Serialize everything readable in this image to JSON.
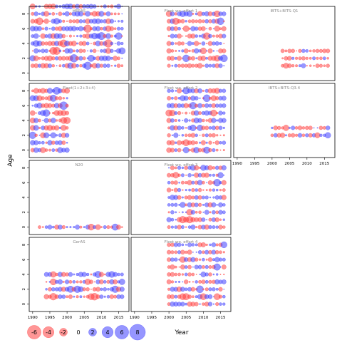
{
  "axes": {
    "ylabel": "Age",
    "xlabel": "Year"
  },
  "x_ticks": [
    1990,
    1995,
    2000,
    2005,
    2010,
    2015
  ],
  "y_ticks": [
    0,
    2,
    4,
    6,
    8
  ],
  "legend": {
    "values": [
      -6,
      -4,
      -2,
      0,
      2,
      4,
      6,
      8
    ]
  },
  "colors": {
    "negative": "#ff4040",
    "positive": "#4040ff",
    "frame": "#000000",
    "title": "#888888"
  },
  "chart_data": [
    {
      "type": "scatter",
      "title": "HERAS",
      "x_range": [
        1989,
        2018
      ],
      "y_range": [
        -1,
        9
      ],
      "years": [
        1990,
        2016
      ],
      "ages": [
        1,
        9
      ],
      "seed": 11,
      "scale": 1.05
    },
    {
      "type": "scatter",
      "title": "Fleet wo. effort 1",
      "x_range": [
        1989,
        2018
      ],
      "y_range": [
        -1,
        9
      ],
      "years": [
        2000,
        2016
      ],
      "ages": [
        1,
        8
      ],
      "seed": 23,
      "scale": 0.95
    },
    {
      "type": "scatter",
      "title": "IBTS+BITS-Q1",
      "x_range": [
        1989,
        2018
      ],
      "y_range": [
        -1,
        9
      ],
      "years": [
        2003,
        2016
      ],
      "ages": [
        1,
        3
      ],
      "seed": 37,
      "scale": 0.85
    },
    {
      "type": "scatter",
      "title": "Fleet(1+2+3+4)",
      "x_range": [
        1989,
        2018
      ],
      "y_range": [
        -1,
        9
      ],
      "years": [
        1990,
        2000
      ],
      "ages": [
        0,
        8
      ],
      "seed": 41,
      "scale": 1.1
    },
    {
      "type": "scatter",
      "title": "Fleet wo. effort 2",
      "x_range": [
        1989,
        2018
      ],
      "y_range": [
        -1,
        9
      ],
      "years": [
        2000,
        2016
      ],
      "ages": [
        0,
        8
      ],
      "seed": 53,
      "scale": 0.95
    },
    {
      "type": "scatter",
      "title": "IBTS+BITS-Q3.4",
      "x_range": [
        1989,
        2018
      ],
      "y_range": [
        -1,
        9
      ],
      "years": [
        2000,
        2016
      ],
      "ages": [
        2,
        3
      ],
      "seed": 67,
      "scale": 0.85
    },
    {
      "type": "scatter",
      "title": "N20",
      "x_range": [
        1989,
        2018
      ],
      "y_range": [
        -1,
        9
      ],
      "years": [
        1992,
        2016
      ],
      "ages": [
        0,
        0
      ],
      "seed": 71,
      "scale": 0.9
    },
    {
      "type": "scatter",
      "title": "Fleet wo. effort 3",
      "x_range": [
        1989,
        2018
      ],
      "y_range": [
        -1,
        9
      ],
      "years": [
        2000,
        2016
      ],
      "ages": [
        0,
        8
      ],
      "seed": 83,
      "scale": 0.95
    },
    {
      "type": "scatter",
      "title": "GerAS",
      "x_range": [
        1989,
        2018
      ],
      "y_range": [
        -1,
        9
      ],
      "years": [
        1994,
        2016
      ],
      "ages": [
        1,
        4
      ],
      "seed": 97,
      "scale": 0.95
    },
    {
      "type": "scatter",
      "title": "Fleet wo. effort 4",
      "x_range": [
        1989,
        2018
      ],
      "y_range": [
        -1,
        9
      ],
      "years": [
        2000,
        2016
      ],
      "ages": [
        0,
        8
      ],
      "seed": 101,
      "scale": 0.95
    }
  ]
}
